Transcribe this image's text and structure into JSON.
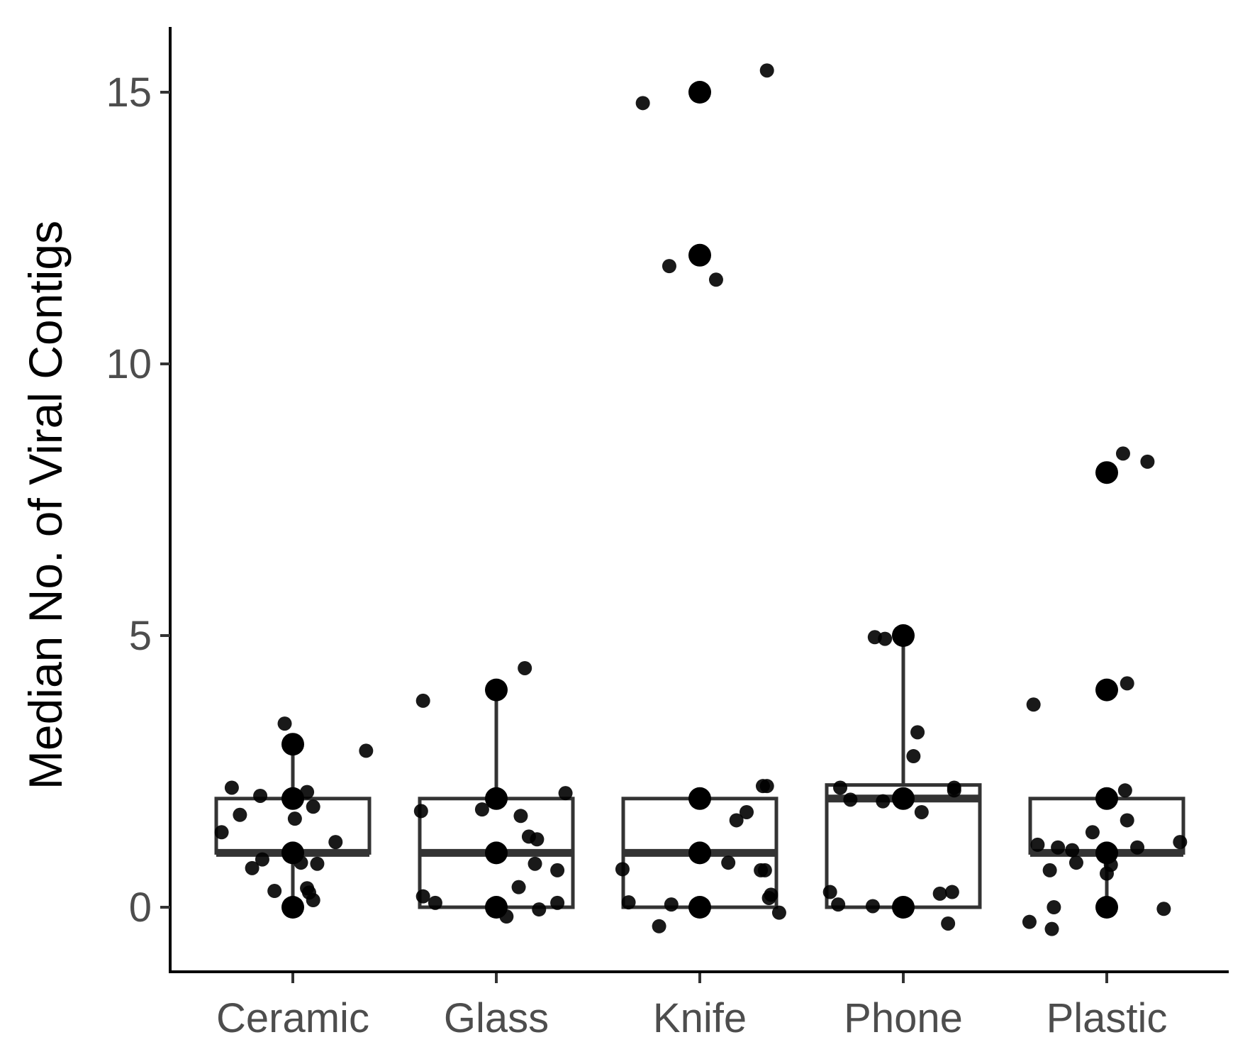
{
  "chart_data": {
    "type": "box",
    "title": "",
    "xlabel": "",
    "ylabel": "Median No. of Viral Contigs",
    "ylim": [
      -1.15,
      16.2
    ],
    "yticks": [
      "0",
      "5",
      "10",
      "15"
    ],
    "categories": [
      "Ceramic",
      "Glass",
      "Knife",
      "Phone",
      "Plastic"
    ],
    "boxes": [
      {
        "category": "Ceramic",
        "q1": 1,
        "median": 1,
        "q3": 2,
        "whisker_low": 0,
        "whisker_high": 3
      },
      {
        "category": "Glass",
        "q1": 0,
        "median": 1,
        "q3": 2,
        "whisker_low": 0,
        "whisker_high": 4
      },
      {
        "category": "Knife",
        "q1": 0,
        "median": 1,
        "q3": 2,
        "whisker_low": 0,
        "whisker_high": 2
      },
      {
        "category": "Phone",
        "q1": 0,
        "median": 2,
        "q3": 2.25,
        "whisker_low": 0,
        "whisker_high": 5
      },
      {
        "category": "Plastic",
        "q1": 1,
        "median": 1,
        "q3": 2,
        "whisker_low": 0,
        "whisker_high": 2
      }
    ],
    "outliers": [
      {
        "category": "Knife",
        "value": 12
      },
      {
        "category": "Knife",
        "value": 15
      },
      {
        "category": "Plastic",
        "value": 4
      },
      {
        "category": "Plastic",
        "value": 8
      }
    ],
    "jitter_points": [
      {
        "category": "Ceramic",
        "dx": -0.35,
        "y": 1.38
      },
      {
        "category": "Ceramic",
        "dx": -0.3,
        "y": 2.2
      },
      {
        "category": "Ceramic",
        "dx": -0.26,
        "y": 1.7
      },
      {
        "category": "Ceramic",
        "dx": -0.2,
        "y": 0.72
      },
      {
        "category": "Ceramic",
        "dx": -0.15,
        "y": 0.88
      },
      {
        "category": "Ceramic",
        "dx": -0.16,
        "y": 2.05
      },
      {
        "category": "Ceramic",
        "dx": -0.09,
        "y": 0.3
      },
      {
        "category": "Ceramic",
        "dx": -0.04,
        "y": 3.38
      },
      {
        "category": "Ceramic",
        "dx": 0.01,
        "y": 1.63
      },
      {
        "category": "Ceramic",
        "dx": 0.04,
        "y": 0.82
      },
      {
        "category": "Ceramic",
        "dx": 0.07,
        "y": 2.12
      },
      {
        "category": "Ceramic",
        "dx": 0.07,
        "y": 0.35
      },
      {
        "category": "Ceramic",
        "dx": 0.08,
        "y": 0.27
      },
      {
        "category": "Ceramic",
        "dx": 0.1,
        "y": 1.85
      },
      {
        "category": "Ceramic",
        "dx": 0.1,
        "y": 0.13
      },
      {
        "category": "Ceramic",
        "dx": 0.12,
        "y": 0.8
      },
      {
        "category": "Ceramic",
        "dx": 0.21,
        "y": 1.2
      },
      {
        "category": "Ceramic",
        "dx": 0.36,
        "y": 2.88
      },
      {
        "category": "Glass",
        "dx": -0.37,
        "y": 1.77
      },
      {
        "category": "Glass",
        "dx": -0.36,
        "y": 3.8
      },
      {
        "category": "Glass",
        "dx": -0.36,
        "y": 0.2
      },
      {
        "category": "Glass",
        "dx": -0.3,
        "y": 0.08
      },
      {
        "category": "Glass",
        "dx": -0.07,
        "y": 1.8
      },
      {
        "category": "Glass",
        "dx": 0.05,
        "y": -0.17
      },
      {
        "category": "Glass",
        "dx": 0.11,
        "y": 0.37
      },
      {
        "category": "Glass",
        "dx": 0.12,
        "y": 1.68
      },
      {
        "category": "Glass",
        "dx": 0.14,
        "y": 4.4
      },
      {
        "category": "Glass",
        "dx": 0.16,
        "y": 1.3
      },
      {
        "category": "Glass",
        "dx": 0.19,
        "y": 0.8
      },
      {
        "category": "Glass",
        "dx": 0.2,
        "y": 1.25
      },
      {
        "category": "Glass",
        "dx": 0.21,
        "y": -0.04
      },
      {
        "category": "Glass",
        "dx": 0.3,
        "y": 0.68
      },
      {
        "category": "Glass",
        "dx": 0.3,
        "y": 0.08
      },
      {
        "category": "Glass",
        "dx": 0.34,
        "y": 2.1
      },
      {
        "category": "Knife",
        "dx": -0.38,
        "y": 0.7
      },
      {
        "category": "Knife",
        "dx": -0.35,
        "y": 0.09
      },
      {
        "category": "Knife",
        "dx": -0.28,
        "y": 14.8
      },
      {
        "category": "Knife",
        "dx": -0.2,
        "y": -0.35
      },
      {
        "category": "Knife",
        "dx": -0.15,
        "y": 11.8
      },
      {
        "category": "Knife",
        "dx": -0.14,
        "y": 0.05
      },
      {
        "category": "Knife",
        "dx": 0.08,
        "y": 11.55
      },
      {
        "category": "Knife",
        "dx": 0.14,
        "y": 0.82
      },
      {
        "category": "Knife",
        "dx": 0.18,
        "y": 1.6
      },
      {
        "category": "Knife",
        "dx": 0.23,
        "y": 1.75
      },
      {
        "category": "Knife",
        "dx": 0.3,
        "y": 0.68
      },
      {
        "category": "Knife",
        "dx": 0.31,
        "y": 2.23
      },
      {
        "category": "Knife",
        "dx": 0.32,
        "y": 0.68
      },
      {
        "category": "Knife",
        "dx": 0.33,
        "y": 15.4
      },
      {
        "category": "Knife",
        "dx": 0.33,
        "y": 2.23
      },
      {
        "category": "Knife",
        "dx": 0.34,
        "y": 0.17
      },
      {
        "category": "Knife",
        "dx": 0.35,
        "y": 0.23
      },
      {
        "category": "Knife",
        "dx": 0.39,
        "y": -0.1
      },
      {
        "category": "Phone",
        "dx": -0.36,
        "y": 0.28
      },
      {
        "category": "Phone",
        "dx": -0.32,
        "y": 0.05
      },
      {
        "category": "Phone",
        "dx": -0.31,
        "y": 2.2
      },
      {
        "category": "Phone",
        "dx": -0.26,
        "y": 1.98
      },
      {
        "category": "Phone",
        "dx": -0.15,
        "y": 0.02
      },
      {
        "category": "Phone",
        "dx": -0.14,
        "y": 4.97
      },
      {
        "category": "Phone",
        "dx": -0.1,
        "y": 1.95
      },
      {
        "category": "Phone",
        "dx": -0.09,
        "y": 4.94
      },
      {
        "category": "Phone",
        "dx": 0.05,
        "y": 2.78
      },
      {
        "category": "Phone",
        "dx": 0.07,
        "y": 3.22
      },
      {
        "category": "Phone",
        "dx": 0.09,
        "y": 1.75
      },
      {
        "category": "Phone",
        "dx": 0.18,
        "y": 0.25
      },
      {
        "category": "Phone",
        "dx": 0.22,
        "y": -0.3
      },
      {
        "category": "Phone",
        "dx": 0.24,
        "y": 0.28
      },
      {
        "category": "Phone",
        "dx": 0.25,
        "y": 2.15
      },
      {
        "category": "Phone",
        "dx": 0.25,
        "y": 2.2
      },
      {
        "category": "Plastic",
        "dx": -0.38,
        "y": -0.27
      },
      {
        "category": "Plastic",
        "dx": -0.36,
        "y": 3.73
      },
      {
        "category": "Plastic",
        "dx": -0.34,
        "y": 1.15
      },
      {
        "category": "Plastic",
        "dx": -0.28,
        "y": 0.68
      },
      {
        "category": "Plastic",
        "dx": -0.27,
        "y": -0.4
      },
      {
        "category": "Plastic",
        "dx": -0.26,
        "y": 0.0
      },
      {
        "category": "Plastic",
        "dx": -0.24,
        "y": 1.1
      },
      {
        "category": "Plastic",
        "dx": -0.17,
        "y": 1.05
      },
      {
        "category": "Plastic",
        "dx": -0.15,
        "y": 0.82
      },
      {
        "category": "Plastic",
        "dx": -0.07,
        "y": 1.38
      },
      {
        "category": "Plastic",
        "dx": 0.0,
        "y": 0.62
      },
      {
        "category": "Plastic",
        "dx": 0.02,
        "y": 0.78
      },
      {
        "category": "Plastic",
        "dx": 0.08,
        "y": 8.35
      },
      {
        "category": "Plastic",
        "dx": 0.09,
        "y": 2.15
      },
      {
        "category": "Plastic",
        "dx": 0.1,
        "y": 1.6
      },
      {
        "category": "Plastic",
        "dx": 0.1,
        "y": 4.12
      },
      {
        "category": "Plastic",
        "dx": 0.15,
        "y": 1.1
      },
      {
        "category": "Plastic",
        "dx": 0.2,
        "y": 8.2
      },
      {
        "category": "Plastic",
        "dx": 0.28,
        "y": -0.03
      },
      {
        "category": "Plastic",
        "dx": 0.36,
        "y": 1.2
      }
    ],
    "legend": "none",
    "grid": false
  }
}
